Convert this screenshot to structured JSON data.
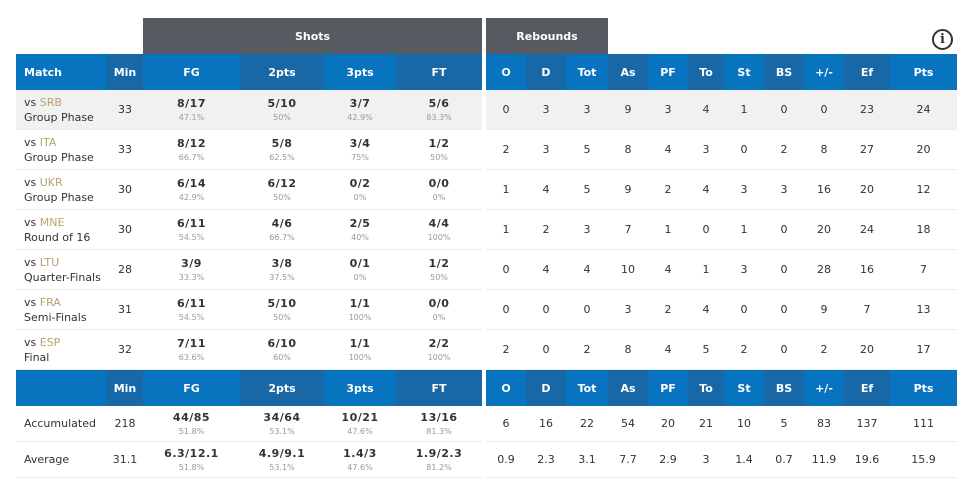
{
  "groups": {
    "shots": "Shots",
    "rebounds": "Rebounds"
  },
  "info_glyph": "i",
  "header": {
    "match": "Match",
    "min": "Min",
    "fg": "FG",
    "pts2": "2pts",
    "pts3": "3pts",
    "ft": "FT",
    "o": "O",
    "d": "D",
    "tot": "Tot",
    "as": "As",
    "pf": "PF",
    "to": "To",
    "st": "St",
    "bs": "BS",
    "pm": "+/-",
    "ef": "Ef",
    "pts": "Pts"
  },
  "games": [
    {
      "vs": "vs ",
      "opp": "SRB",
      "phase": "Group Phase",
      "min": "33",
      "fg": "8/17",
      "fg_pct": "47.1%",
      "p2": "5/10",
      "p2_pct": "50%",
      "p3": "3/7",
      "p3_pct": "42.9%",
      "ft": "5/6",
      "ft_pct": "83.3%",
      "o": "0",
      "d": "3",
      "tot": "3",
      "as": "9",
      "pf": "3",
      "to": "4",
      "st": "1",
      "bs": "0",
      "pm": "0",
      "ef": "23",
      "pts": "24"
    },
    {
      "vs": "vs ",
      "opp": "ITA",
      "phase": "Group Phase",
      "min": "33",
      "fg": "8/12",
      "fg_pct": "66.7%",
      "p2": "5/8",
      "p2_pct": "62.5%",
      "p3": "3/4",
      "p3_pct": "75%",
      "ft": "1/2",
      "ft_pct": "50%",
      "o": "2",
      "d": "3",
      "tot": "5",
      "as": "8",
      "pf": "4",
      "to": "3",
      "st": "0",
      "bs": "2",
      "pm": "8",
      "ef": "27",
      "pts": "20"
    },
    {
      "vs": "vs ",
      "opp": "UKR",
      "phase": "Group Phase",
      "min": "30",
      "fg": "6/14",
      "fg_pct": "42.9%",
      "p2": "6/12",
      "p2_pct": "50%",
      "p3": "0/2",
      "p3_pct": "0%",
      "ft": "0/0",
      "ft_pct": "0%",
      "o": "1",
      "d": "4",
      "tot": "5",
      "as": "9",
      "pf": "2",
      "to": "4",
      "st": "3",
      "bs": "3",
      "pm": "16",
      "ef": "20",
      "pts": "12"
    },
    {
      "vs": "vs ",
      "opp": "MNE",
      "phase": "Round of 16",
      "min": "30",
      "fg": "6/11",
      "fg_pct": "54.5%",
      "p2": "4/6",
      "p2_pct": "66.7%",
      "p3": "2/5",
      "p3_pct": "40%",
      "ft": "4/4",
      "ft_pct": "100%",
      "o": "1",
      "d": "2",
      "tot": "3",
      "as": "7",
      "pf": "1",
      "to": "0",
      "st": "1",
      "bs": "0",
      "pm": "20",
      "ef": "24",
      "pts": "18"
    },
    {
      "vs": "vs ",
      "opp": "LTU",
      "phase": "Quarter-Finals",
      "min": "28",
      "fg": "3/9",
      "fg_pct": "33.3%",
      "p2": "3/8",
      "p2_pct": "37.5%",
      "p3": "0/1",
      "p3_pct": "0%",
      "ft": "1/2",
      "ft_pct": "50%",
      "o": "0",
      "d": "4",
      "tot": "4",
      "as": "10",
      "pf": "4",
      "to": "1",
      "st": "3",
      "bs": "0",
      "pm": "28",
      "ef": "16",
      "pts": "7"
    },
    {
      "vs": "vs ",
      "opp": "FRA",
      "phase": "Semi-Finals",
      "min": "31",
      "fg": "6/11",
      "fg_pct": "54.5%",
      "p2": "5/10",
      "p2_pct": "50%",
      "p3": "1/1",
      "p3_pct": "100%",
      "ft": "0/0",
      "ft_pct": "0%",
      "o": "0",
      "d": "0",
      "tot": "0",
      "as": "3",
      "pf": "2",
      "to": "4",
      "st": "0",
      "bs": "0",
      "pm": "9",
      "ef": "7",
      "pts": "13"
    },
    {
      "vs": "vs ",
      "opp": "ESP",
      "phase": "Final",
      "min": "32",
      "fg": "7/11",
      "fg_pct": "63.6%",
      "p2": "6/10",
      "p2_pct": "60%",
      "p3": "1/1",
      "p3_pct": "100%",
      "ft": "2/2",
      "ft_pct": "100%",
      "o": "2",
      "d": "0",
      "tot": "2",
      "as": "8",
      "pf": "4",
      "to": "5",
      "st": "2",
      "bs": "0",
      "pm": "2",
      "ef": "20",
      "pts": "17"
    }
  ],
  "totals": [
    {
      "label": "Accumulated",
      "min": "218",
      "fg": "44/85",
      "fg_pct": "51.8%",
      "p2": "34/64",
      "p2_pct": "53.1%",
      "p3": "10/21",
      "p3_pct": "47.6%",
      "ft": "13/16",
      "ft_pct": "81.3%",
      "o": "6",
      "d": "16",
      "tot": "22",
      "as": "54",
      "pf": "20",
      "to": "21",
      "st": "10",
      "bs": "5",
      "pm": "83",
      "ef": "137",
      "pts": "111"
    },
    {
      "label": "Average",
      "min": "31.1",
      "fg": "6.3/12.1",
      "fg_pct": "51.8%",
      "p2": "4.9/9.1",
      "p2_pct": "53.1%",
      "p3": "1.4/3",
      "p3_pct": "47.6%",
      "ft": "1.9/2.3",
      "ft_pct": "81.2%",
      "o": "0.9",
      "d": "2.3",
      "tot": "3.1",
      "as": "7.7",
      "pf": "2.9",
      "to": "3",
      "st": "1.4",
      "bs": "0.7",
      "pm": "11.9",
      "ef": "19.6",
      "pts": "15.9"
    }
  ],
  "colors": {
    "header_bg": "#0874c0",
    "header_dark": "#1868a8",
    "group_bg": "#555b61",
    "opponent": "#b8a26e",
    "pct": "#999999",
    "alt_row": "#f1f1f1"
  }
}
